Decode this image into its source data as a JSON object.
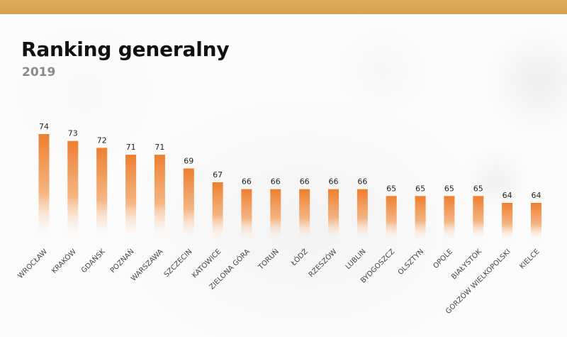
{
  "header": {
    "title": "Ranking generalny",
    "subtitle": "2019"
  },
  "colors": {
    "bar_top": "#ee7e2f",
    "bar_bottom": "#ffffff",
    "top_band": "#dca654"
  },
  "chart_data": {
    "type": "bar",
    "title": "Ranking generalny",
    "subtitle": "2019",
    "xlabel": "",
    "ylabel": "",
    "grid": false,
    "categories": [
      "WROCŁAW",
      "KRAKÓW",
      "GDAŃSK",
      "POZNAŃ",
      "WARSZAWA",
      "SZCZECIN",
      "KATOWICE",
      "ZIELONA GÓRA",
      "TORUŃ",
      "ŁÓDŹ",
      "RZESZÓW",
      "LUBLIN",
      "BYDGOSZCZ",
      "OLSZTYN",
      "OPOLE",
      "BIAŁYSTOK",
      "GORZÓW WIELKOPOLSKI",
      "KIELCE"
    ],
    "values": [
      74,
      73,
      72,
      71,
      71,
      69,
      67,
      66,
      66,
      66,
      66,
      66,
      65,
      65,
      65,
      65,
      64,
      64
    ]
  }
}
